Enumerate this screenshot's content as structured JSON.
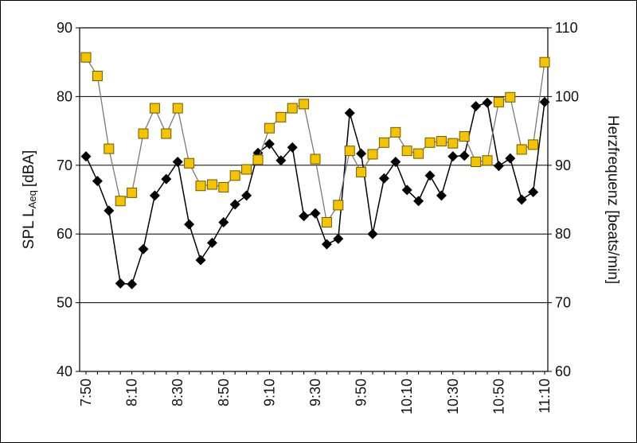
{
  "chart_data": {
    "type": "line",
    "x": [
      "7:50",
      "7:55",
      "8:00",
      "8:05",
      "8:10",
      "8:15",
      "8:20",
      "8:25",
      "8:30",
      "8:35",
      "8:40",
      "8:45",
      "8:50",
      "8:55",
      "9:00",
      "9:05",
      "9:10",
      "9:15",
      "9:20",
      "9:25",
      "9:30",
      "9:35",
      "9:40",
      "9:45",
      "9:50",
      "9:55",
      "10:00",
      "10:05",
      "10:10",
      "10:15",
      "10:20",
      "10:25",
      "10:30",
      "10:35",
      "10:40",
      "10:45",
      "10:50",
      "10:55",
      "11:00",
      "11:05",
      "11:10"
    ],
    "x_tick_labels": [
      "7:50",
      "8:10",
      "8:30",
      "8:50",
      "9:10",
      "9:30",
      "9:50",
      "10:10",
      "10:30",
      "10:50",
      "11:10"
    ],
    "ylabel_left": {
      "main": "SPL L",
      "sub": "Aeq",
      "unit": "[dBA]"
    },
    "ylabel_right": "Herzfrequenz [beats/min]",
    "ylim_left": [
      40,
      90
    ],
    "yticks_left": [
      "40",
      "50",
      "60",
      "70",
      "80",
      "90"
    ],
    "ylim_right": [
      60,
      110
    ],
    "yticks_right": [
      "60",
      "70",
      "80",
      "90",
      "100",
      "110"
    ],
    "grid": "horizontal",
    "series": [
      {
        "marker": "diamond",
        "color": "#000000",
        "axis": "left",
        "values": [
          71.3,
          67.7,
          63.4,
          52.8,
          52.7,
          57.8,
          65.6,
          68.0,
          70.5,
          61.4,
          56.2,
          58.7,
          61.7,
          64.3,
          65.6,
          71.8,
          73.1,
          70.7,
          72.6,
          62.6,
          63.0,
          58.5,
          59.3,
          77.6,
          71.7,
          60.0,
          68.1,
          70.5,
          66.4,
          64.8,
          68.5,
          65.6,
          71.3,
          71.4,
          78.6,
          79.1,
          69.9,
          71.0,
          65.0,
          66.1,
          79.2
        ]
      },
      {
        "marker": "square",
        "color": "#f5c400",
        "axis": "right",
        "values": [
          105.7,
          103.0,
          92.4,
          84.8,
          86.0,
          94.6,
          98.3,
          94.6,
          98.3,
          90.3,
          87.0,
          87.2,
          86.8,
          88.5,
          89.4,
          90.8,
          95.4,
          97.0,
          98.3,
          98.9,
          90.9,
          81.7,
          84.2,
          92.1,
          89.0,
          91.6,
          93.3,
          94.8,
          92.1,
          91.7,
          93.3,
          93.5,
          93.2,
          94.2,
          90.5,
          90.7,
          99.2,
          99.9,
          92.3,
          93.0,
          105.0
        ]
      }
    ]
  }
}
